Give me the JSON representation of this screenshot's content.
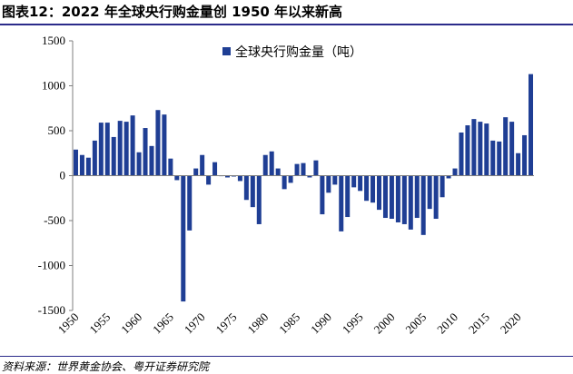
{
  "header": {
    "title": "图表12：2022 年全球央行购金量创 1950 年以来新高"
  },
  "footer": {
    "source": "资料来源：世界黄金协会、粤开证券研究院"
  },
  "colors": {
    "bar": "#1f3e94",
    "axis": "#7f7f7f",
    "rule": "#2b2b8a"
  },
  "chart_data": {
    "type": "bar",
    "title": "图表12：2022 年全球央行购金量创 1950 年以来新高",
    "legend": {
      "label": "全球央行购金量（吨）",
      "position": "top-center"
    },
    "ylim": [
      -1500,
      1500
    ],
    "yticks": [
      -1500,
      -1000,
      -500,
      0,
      500,
      1000,
      1500
    ],
    "xlim": [
      1950,
      2022
    ],
    "xticks": [
      1950,
      1955,
      1960,
      1965,
      1970,
      1975,
      1980,
      1985,
      1990,
      1995,
      2000,
      2005,
      2010,
      2015,
      2020
    ],
    "categories": [
      1950,
      1951,
      1952,
      1953,
      1954,
      1955,
      1956,
      1957,
      1958,
      1959,
      1960,
      1961,
      1962,
      1963,
      1964,
      1965,
      1966,
      1967,
      1968,
      1969,
      1970,
      1971,
      1972,
      1973,
      1974,
      1975,
      1976,
      1977,
      1978,
      1979,
      1980,
      1981,
      1982,
      1983,
      1984,
      1985,
      1986,
      1987,
      1988,
      1989,
      1990,
      1991,
      1992,
      1993,
      1994,
      1995,
      1996,
      1997,
      1998,
      1999,
      2000,
      2001,
      2002,
      2003,
      2004,
      2005,
      2006,
      2007,
      2008,
      2009,
      2010,
      2011,
      2012,
      2013,
      2014,
      2015,
      2016,
      2017,
      2018,
      2019,
      2020,
      2021,
      2022
    ],
    "values": [
      290,
      230,
      200,
      390,
      590,
      590,
      430,
      610,
      600,
      670,
      260,
      530,
      330,
      730,
      680,
      190,
      -50,
      -1400,
      -610,
      80,
      230,
      -100,
      150,
      0,
      -20,
      -10,
      -60,
      -270,
      -350,
      -540,
      230,
      270,
      80,
      -150,
      -80,
      130,
      140,
      -20,
      170,
      -430,
      -190,
      -100,
      -620,
      -460,
      -130,
      -170,
      -280,
      -300,
      -380,
      -470,
      -480,
      -520,
      -540,
      -600,
      -470,
      -660,
      -370,
      -480,
      -240,
      -30,
      80,
      480,
      560,
      630,
      600,
      580,
      390,
      380,
      650,
      600,
      250,
      450,
      1130
    ],
    "xlabel": "",
    "ylabel": ""
  }
}
